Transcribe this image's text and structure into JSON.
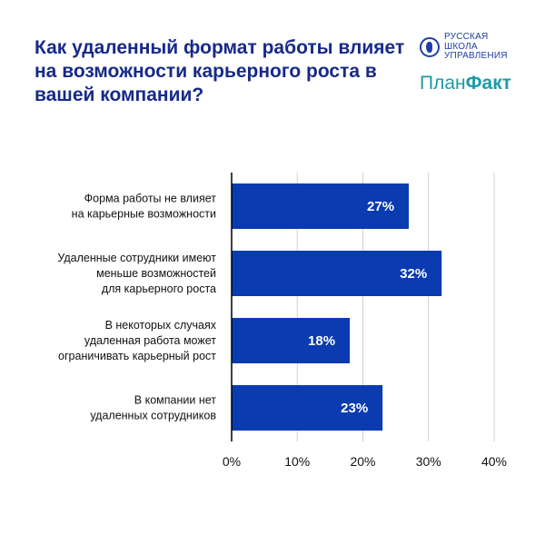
{
  "title": "Как удаленный формат работы влияет на возможности карьерного роста в вашей компании?",
  "logos": {
    "school": "РУССКАЯ ШКОЛА УПРАВЛЕНИЯ",
    "school_lines": [
      "РУССКАЯ",
      "ШКОЛА",
      "УПРАВЛЕНИЯ"
    ],
    "planfakt_a": "План",
    "planfakt_b": "Факт"
  },
  "chart_data": {
    "type": "bar",
    "orientation": "horizontal",
    "categories": [
      [
        "Форма работы не влияет",
        "на карьерные возможности"
      ],
      [
        "Удаленные сотрудники имеют",
        "меньше возможностей",
        "для карьерного роста"
      ],
      [
        "В некоторых случаях",
        "удаленная работа может",
        "ограничивать карьерный рост"
      ],
      [
        "В компании нет",
        "удаленных сотрудников"
      ]
    ],
    "values": [
      27,
      32,
      18,
      23
    ],
    "data_labels": [
      "27%",
      "32%",
      "18%",
      "23%"
    ],
    "xlim": [
      0,
      40
    ],
    "xticks": [
      0,
      10,
      20,
      30,
      40
    ],
    "xtick_labels": [
      "0%",
      "10%",
      "20%",
      "30%",
      "40%"
    ],
    "grid": true,
    "colors": {
      "bar": "#0a3bb0",
      "grid": "#cfcfcf",
      "axis": "#000000"
    }
  }
}
